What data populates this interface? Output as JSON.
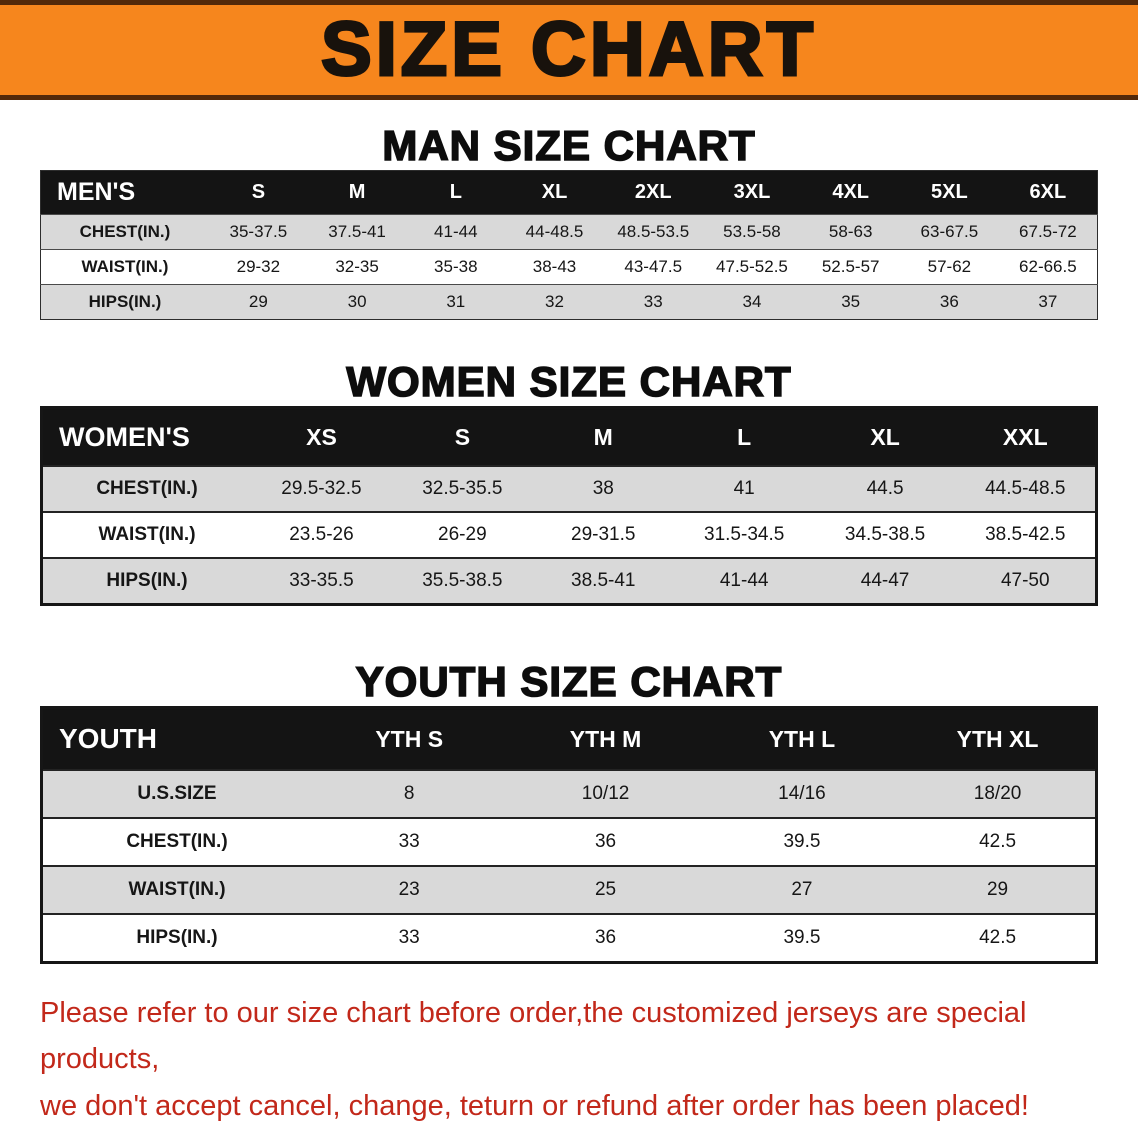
{
  "banner": {
    "title": "SIZE CHART",
    "bg_color": "#f6861d",
    "text_color": "#18120c"
  },
  "sections": [
    {
      "heading": "MAN SIZE CHART",
      "table": {
        "header": [
          "MEN'S",
          "S",
          "M",
          "L",
          "XL",
          "2XL",
          "3XL",
          "4XL",
          "5XL",
          "6XL"
        ],
        "rows": [
          [
            "CHEST(IN.)",
            "35-37.5",
            "37.5-41",
            "41-44",
            "44-48.5",
            "48.5-53.5",
            "53.5-58",
            "58-63",
            "63-67.5",
            "67.5-72"
          ],
          [
            "WAIST(IN.)",
            "29-32",
            "32-35",
            "35-38",
            "38-43",
            "43-47.5",
            "47.5-52.5",
            "52.5-57",
            "57-62",
            "62-66.5"
          ],
          [
            "HIPS(IN.)",
            "29",
            "30",
            "31",
            "32",
            "33",
            "34",
            "35",
            "36",
            "37"
          ]
        ]
      }
    },
    {
      "heading": "WOMEN SIZE CHART",
      "table": {
        "header": [
          "WOMEN'S",
          "XS",
          "S",
          "M",
          "L",
          "XL",
          "XXL"
        ],
        "rows": [
          [
            "CHEST(IN.)",
            "29.5-32.5",
            "32.5-35.5",
            "38",
            "41",
            "44.5",
            "44.5-48.5"
          ],
          [
            "WAIST(IN.)",
            "23.5-26",
            "26-29",
            "29-31.5",
            "31.5-34.5",
            "34.5-38.5",
            "38.5-42.5"
          ],
          [
            "HIPS(IN.)",
            "33-35.5",
            "35.5-38.5",
            "38.5-41",
            "41-44",
            "44-47",
            "47-50"
          ]
        ]
      }
    },
    {
      "heading": "YOUTH SIZE CHART",
      "table": {
        "header": [
          "YOUTH",
          "YTH S",
          "YTH M",
          "YTH L",
          "YTH XL"
        ],
        "rows": [
          [
            "U.S.SIZE",
            "8",
            "10/12",
            "14/16",
            "18/20"
          ],
          [
            "CHEST(IN.)",
            "33",
            "36",
            "39.5",
            "42.5"
          ],
          [
            "WAIST(IN.)",
            "23",
            "25",
            "27",
            "29"
          ],
          [
            "HIPS(IN.)",
            "33",
            "36",
            "39.5",
            "42.5"
          ]
        ]
      }
    }
  ],
  "footer": {
    "line1": "Please refer to our size chart before order,the customized jerseys are special products,",
    "line2": "we don't accept cancel, change, teturn or refund after order has been placed!",
    "text_color": "#c2281a"
  }
}
